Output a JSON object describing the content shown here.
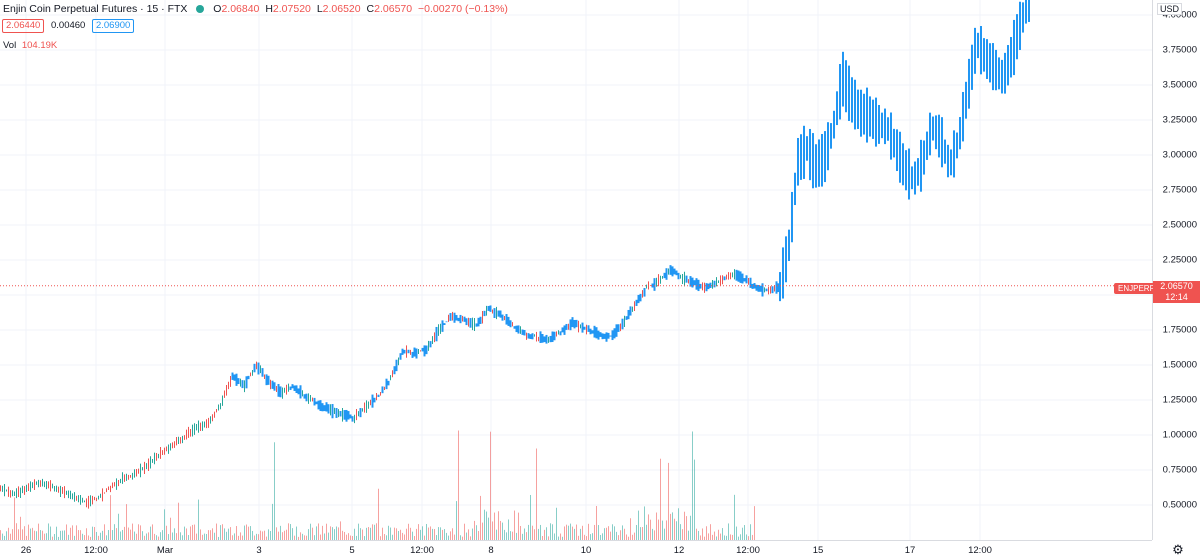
{
  "legend": {
    "title": "Enjin Coin Perpetual Futures · 15 · FTX",
    "ohlc": [
      {
        "key": "O",
        "value": "2.06840"
      },
      {
        "key": "H",
        "value": "2.07520"
      },
      {
        "key": "L",
        "value": "2.06520"
      },
      {
        "key": "C",
        "value": "2.06570"
      },
      {
        "key": "",
        "value": "−0.00270 (−0.13%)"
      }
    ],
    "bid": "2.06440",
    "spread": "0.00460",
    "ask": "2.06900",
    "vol_label": "Vol",
    "vol_value": "104.19K"
  },
  "price_axis": {
    "currency": "USD",
    "ticks": [
      "4.00000",
      "3.75000",
      "3.50000",
      "3.25000",
      "3.00000",
      "2.75000",
      "2.50000",
      "2.25000",
      "2.00000",
      "1.75000",
      "1.50000",
      "1.25000",
      "1.00000",
      "0.75000",
      "0.50000"
    ]
  },
  "time_axis": {
    "ticks": [
      "26",
      "12:00",
      "Mar",
      "3",
      "5",
      "12:00",
      "8",
      "10",
      "12",
      "12:00",
      "15",
      "17",
      "12:00"
    ]
  },
  "current_price": {
    "symbol": "ENJPERP",
    "price": "2.06570",
    "countdown": "12:14"
  },
  "colors": {
    "up": "#26a69a",
    "down": "#ef5350",
    "bar_projection": "#2196f3",
    "grid": "#f0f3fa"
  },
  "chart_data": {
    "type": "line",
    "ylim": [
      0.3,
      4.1
    ],
    "series": [
      {
        "values": [
          0.62,
          0.58,
          0.61,
          0.66,
          0.64,
          0.6,
          0.56,
          0.52,
          0.55,
          0.62,
          0.68,
          0.72,
          0.78,
          0.86,
          0.92,
          0.98,
          1.05,
          1.08,
          1.2,
          1.42,
          1.35,
          1.5,
          1.38,
          1.3,
          1.35,
          1.28,
          1.22,
          1.18,
          1.15,
          1.12,
          1.2,
          1.28,
          1.4,
          1.6,
          1.58,
          1.62,
          1.75,
          1.85,
          1.82,
          1.78,
          1.9,
          1.86,
          1.78,
          1.72,
          1.7,
          1.68,
          1.74,
          1.8,
          1.76,
          1.72,
          1.7,
          1.78,
          1.92,
          2.05,
          2.1,
          2.18,
          2.12,
          2.08,
          2.05,
          2.1,
          2.15,
          2.12,
          2.05,
          2.03,
          2.06
        ]
      },
      {
        "values": [
          2.06,
          2.35,
          2.95,
          3.05,
          2.92,
          2.98,
          3.2,
          3.55,
          3.4,
          3.3,
          3.28,
          3.22,
          3.2,
          3.05,
          2.9,
          2.82,
          2.95,
          3.2,
          3.12,
          2.92,
          3.1,
          3.45,
          3.8,
          3.7,
          3.62,
          3.55,
          3.72,
          3.95,
          4.1
        ]
      }
    ]
  }
}
